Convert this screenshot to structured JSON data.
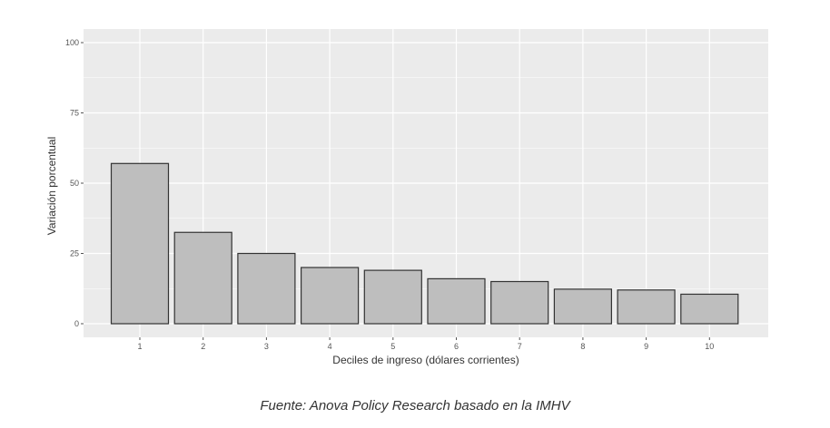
{
  "chart_data": {
    "type": "bar",
    "categories": [
      "1",
      "2",
      "3",
      "4",
      "5",
      "6",
      "7",
      "8",
      "9",
      "10"
    ],
    "values": [
      57,
      32.5,
      25,
      20,
      19,
      16,
      15,
      12.3,
      12,
      10.5
    ],
    "xlabel": "Deciles de ingreso (dólares corrientes)",
    "ylabel": "Variación porcentual",
    "ylim": [
      0,
      100
    ],
    "yticks": [
      "0",
      "25",
      "50",
      "75",
      "100"
    ],
    "grid": true,
    "colors": {
      "panel": "#ebebeb",
      "grid": "#ffffff",
      "bar_fill": "#bebebe",
      "bar_stroke": "#333333"
    }
  },
  "caption": "Fuente: Anova Policy Research basado en la IMHV"
}
